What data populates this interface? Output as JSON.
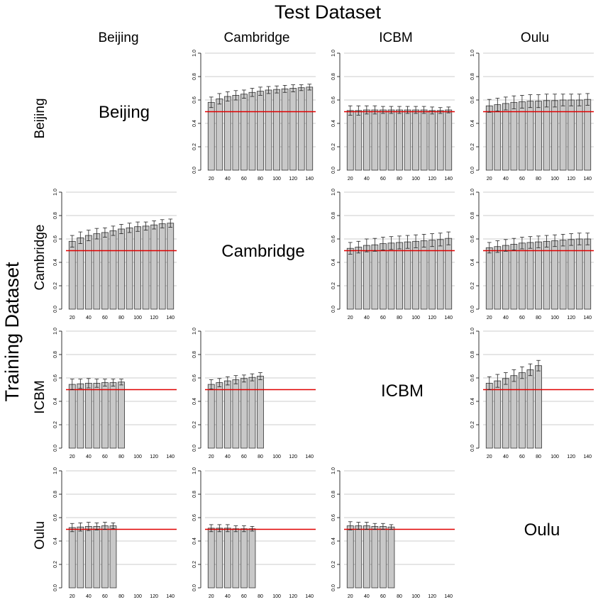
{
  "title": "Test Dataset",
  "ylabel": "Training Dataset",
  "column_headers": [
    "Beijing",
    "Cambridge",
    "ICBM",
    "Oulu"
  ],
  "row_headers": [
    "Beijing",
    "Cambridge",
    "ICBM",
    "Oulu"
  ],
  "diagonal_labels": [
    "Beijing",
    "Cambridge",
    "ICBM",
    "Oulu"
  ],
  "colors": {
    "bar_fill": "#c8c8c8",
    "bar_stroke": "#333333",
    "chance_line": "#e00000",
    "grid": "#cccccc"
  },
  "chart_data": [
    {
      "type": "bar",
      "row": "Beijing",
      "col": "Cambridge",
      "x": [
        20,
        30,
        40,
        50,
        60,
        70,
        80,
        90,
        100,
        110,
        120,
        130,
        140
      ],
      "values": [
        0.58,
        0.61,
        0.63,
        0.64,
        0.65,
        0.665,
        0.675,
        0.685,
        0.69,
        0.695,
        0.7,
        0.705,
        0.71
      ],
      "errors": [
        0.045,
        0.045,
        0.04,
        0.04,
        0.035,
        0.035,
        0.035,
        0.03,
        0.03,
        0.03,
        0.03,
        0.025,
        0.025
      ],
      "ylim": [
        0,
        1
      ],
      "chance": 0.5,
      "xticks": [
        "20",
        "40",
        "60",
        "80",
        "100",
        "120",
        "140"
      ],
      "yticks": [
        "0.0",
        "0.2",
        "0.4",
        "0.6",
        "0.8",
        "1.0"
      ]
    },
    {
      "type": "bar",
      "row": "Beijing",
      "col": "ICBM",
      "x": [
        20,
        30,
        40,
        50,
        60,
        70,
        80,
        90,
        100,
        110,
        120,
        130,
        140
      ],
      "values": [
        0.51,
        0.51,
        0.515,
        0.515,
        0.515,
        0.515,
        0.515,
        0.515,
        0.515,
        0.515,
        0.51,
        0.51,
        0.515
      ],
      "errors": [
        0.04,
        0.04,
        0.035,
        0.035,
        0.03,
        0.03,
        0.03,
        0.03,
        0.03,
        0.03,
        0.03,
        0.025,
        0.025
      ],
      "ylim": [
        0,
        1
      ],
      "chance": 0.5,
      "xticks": [
        "20",
        "40",
        "60",
        "80",
        "100",
        "120",
        "140"
      ],
      "yticks": [
        "0.0",
        "0.2",
        "0.4",
        "0.6",
        "0.8",
        "1.0"
      ]
    },
    {
      "type": "bar",
      "row": "Beijing",
      "col": "Oulu",
      "x": [
        20,
        30,
        40,
        50,
        60,
        70,
        80,
        90,
        100,
        110,
        120,
        130,
        140
      ],
      "values": [
        0.55,
        0.56,
        0.57,
        0.58,
        0.585,
        0.59,
        0.59,
        0.595,
        0.595,
        0.6,
        0.6,
        0.6,
        0.605
      ],
      "errors": [
        0.055,
        0.055,
        0.055,
        0.055,
        0.055,
        0.055,
        0.055,
        0.055,
        0.055,
        0.05,
        0.05,
        0.05,
        0.05
      ],
      "ylim": [
        0,
        1
      ],
      "chance": 0.5,
      "xticks": [
        "20",
        "40",
        "60",
        "80",
        "100",
        "120",
        "140"
      ],
      "yticks": [
        "0.0",
        "0.2",
        "0.4",
        "0.6",
        "0.8",
        "1.0"
      ]
    },
    {
      "type": "bar",
      "row": "Cambridge",
      "col": "Beijing",
      "x": [
        20,
        30,
        40,
        50,
        60,
        70,
        80,
        90,
        100,
        110,
        120,
        130,
        140
      ],
      "values": [
        0.58,
        0.61,
        0.63,
        0.645,
        0.655,
        0.67,
        0.685,
        0.695,
        0.705,
        0.71,
        0.72,
        0.73,
        0.735
      ],
      "errors": [
        0.05,
        0.05,
        0.045,
        0.045,
        0.04,
        0.04,
        0.04,
        0.04,
        0.04,
        0.035,
        0.035,
        0.035,
        0.035
      ],
      "ylim": [
        0,
        1
      ],
      "chance": 0.5,
      "xticks": [
        "20",
        "40",
        "60",
        "80",
        "100",
        "120",
        "140"
      ],
      "yticks": [
        "0.0",
        "0.2",
        "0.4",
        "0.6",
        "0.8",
        "1.0"
      ]
    },
    {
      "type": "bar",
      "row": "Cambridge",
      "col": "ICBM",
      "x": [
        20,
        30,
        40,
        50,
        60,
        70,
        80,
        90,
        100,
        110,
        120,
        130,
        140
      ],
      "values": [
        0.52,
        0.53,
        0.545,
        0.55,
        0.56,
        0.565,
        0.57,
        0.575,
        0.58,
        0.585,
        0.59,
        0.595,
        0.605
      ],
      "errors": [
        0.05,
        0.05,
        0.055,
        0.055,
        0.055,
        0.055,
        0.055,
        0.055,
        0.055,
        0.055,
        0.055,
        0.055,
        0.055
      ],
      "ylim": [
        0,
        1
      ],
      "chance": 0.5,
      "xticks": [
        "20",
        "40",
        "60",
        "80",
        "100",
        "120",
        "140"
      ],
      "yticks": [
        "0.0",
        "0.2",
        "0.4",
        "0.6",
        "0.8",
        "1.0"
      ]
    },
    {
      "type": "bar",
      "row": "Cambridge",
      "col": "Oulu",
      "x": [
        20,
        30,
        40,
        50,
        60,
        70,
        80,
        90,
        100,
        110,
        120,
        130,
        140
      ],
      "values": [
        0.525,
        0.535,
        0.545,
        0.555,
        0.565,
        0.57,
        0.575,
        0.58,
        0.585,
        0.59,
        0.595,
        0.6,
        0.6
      ],
      "errors": [
        0.045,
        0.05,
        0.05,
        0.05,
        0.05,
        0.05,
        0.05,
        0.05,
        0.05,
        0.05,
        0.05,
        0.05,
        0.05
      ],
      "ylim": [
        0,
        1
      ],
      "chance": 0.5,
      "xticks": [
        "20",
        "40",
        "60",
        "80",
        "100",
        "120",
        "140"
      ],
      "yticks": [
        "0.0",
        "0.2",
        "0.4",
        "0.6",
        "0.8",
        "1.0"
      ]
    },
    {
      "type": "bar",
      "row": "ICBM",
      "col": "Beijing",
      "x": [
        20,
        30,
        40,
        50,
        60,
        70,
        80
      ],
      "values": [
        0.545,
        0.55,
        0.555,
        0.555,
        0.56,
        0.56,
        0.565
      ],
      "errors": [
        0.045,
        0.04,
        0.04,
        0.035,
        0.03,
        0.03,
        0.025
      ],
      "ylim": [
        0,
        1
      ],
      "chance": 0.5,
      "xticks": [
        "20",
        "40",
        "60",
        "80",
        "100",
        "120",
        "140"
      ],
      "yticks": [
        "0.0",
        "0.2",
        "0.4",
        "0.6",
        "0.8",
        "1.0"
      ]
    },
    {
      "type": "bar",
      "row": "ICBM",
      "col": "Cambridge",
      "x": [
        20,
        30,
        40,
        50,
        60,
        70,
        80
      ],
      "values": [
        0.545,
        0.56,
        0.575,
        0.585,
        0.595,
        0.605,
        0.615
      ],
      "errors": [
        0.04,
        0.035,
        0.035,
        0.035,
        0.03,
        0.03,
        0.03
      ],
      "ylim": [
        0,
        1
      ],
      "chance": 0.5,
      "xticks": [
        "20",
        "40",
        "60",
        "80",
        "100",
        "120",
        "140"
      ],
      "yticks": [
        "0.0",
        "0.2",
        "0.4",
        "0.6",
        "0.8",
        "1.0"
      ]
    },
    {
      "type": "bar",
      "row": "ICBM",
      "col": "Oulu",
      "x": [
        20,
        30,
        40,
        50,
        60,
        70,
        80
      ],
      "values": [
        0.555,
        0.575,
        0.595,
        0.62,
        0.645,
        0.67,
        0.705
      ],
      "errors": [
        0.055,
        0.055,
        0.05,
        0.05,
        0.05,
        0.05,
        0.045
      ],
      "ylim": [
        0,
        1
      ],
      "chance": 0.5,
      "xticks": [
        "20",
        "40",
        "60",
        "80",
        "100",
        "120",
        "140"
      ],
      "yticks": [
        "0.0",
        "0.2",
        "0.4",
        "0.6",
        "0.8",
        "1.0"
      ]
    },
    {
      "type": "bar",
      "row": "Oulu",
      "col": "Beijing",
      "x": [
        20,
        30,
        40,
        50,
        60,
        70
      ],
      "values": [
        0.515,
        0.52,
        0.525,
        0.525,
        0.53,
        0.53
      ],
      "errors": [
        0.035,
        0.035,
        0.035,
        0.03,
        0.03,
        0.025
      ],
      "ylim": [
        0,
        1
      ],
      "chance": 0.5,
      "xticks": [
        "20",
        "40",
        "60",
        "80",
        "100",
        "120",
        "140"
      ],
      "yticks": [
        "0.0",
        "0.2",
        "0.4",
        "0.6",
        "0.8",
        "1.0"
      ]
    },
    {
      "type": "bar",
      "row": "Oulu",
      "col": "Cambridge",
      "x": [
        20,
        30,
        40,
        50,
        60,
        70
      ],
      "values": [
        0.51,
        0.51,
        0.51,
        0.505,
        0.505,
        0.505
      ],
      "errors": [
        0.03,
        0.03,
        0.03,
        0.025,
        0.025,
        0.02
      ],
      "ylim": [
        0,
        1
      ],
      "chance": 0.5,
      "xticks": [
        "20",
        "40",
        "60",
        "80",
        "100",
        "120",
        "140"
      ],
      "yticks": [
        "0.0",
        "0.2",
        "0.4",
        "0.6",
        "0.8",
        "1.0"
      ]
    },
    {
      "type": "bar",
      "row": "Oulu",
      "col": "ICBM",
      "x": [
        20,
        30,
        40,
        50,
        60,
        70
      ],
      "values": [
        0.53,
        0.53,
        0.53,
        0.525,
        0.525,
        0.52
      ],
      "errors": [
        0.035,
        0.03,
        0.03,
        0.025,
        0.025,
        0.02
      ],
      "ylim": [
        0,
        1
      ],
      "chance": 0.5,
      "xticks": [
        "20",
        "40",
        "60",
        "80",
        "100",
        "120",
        "140"
      ],
      "yticks": [
        "0.0",
        "0.2",
        "0.4",
        "0.6",
        "0.8",
        "1.0"
      ]
    }
  ]
}
